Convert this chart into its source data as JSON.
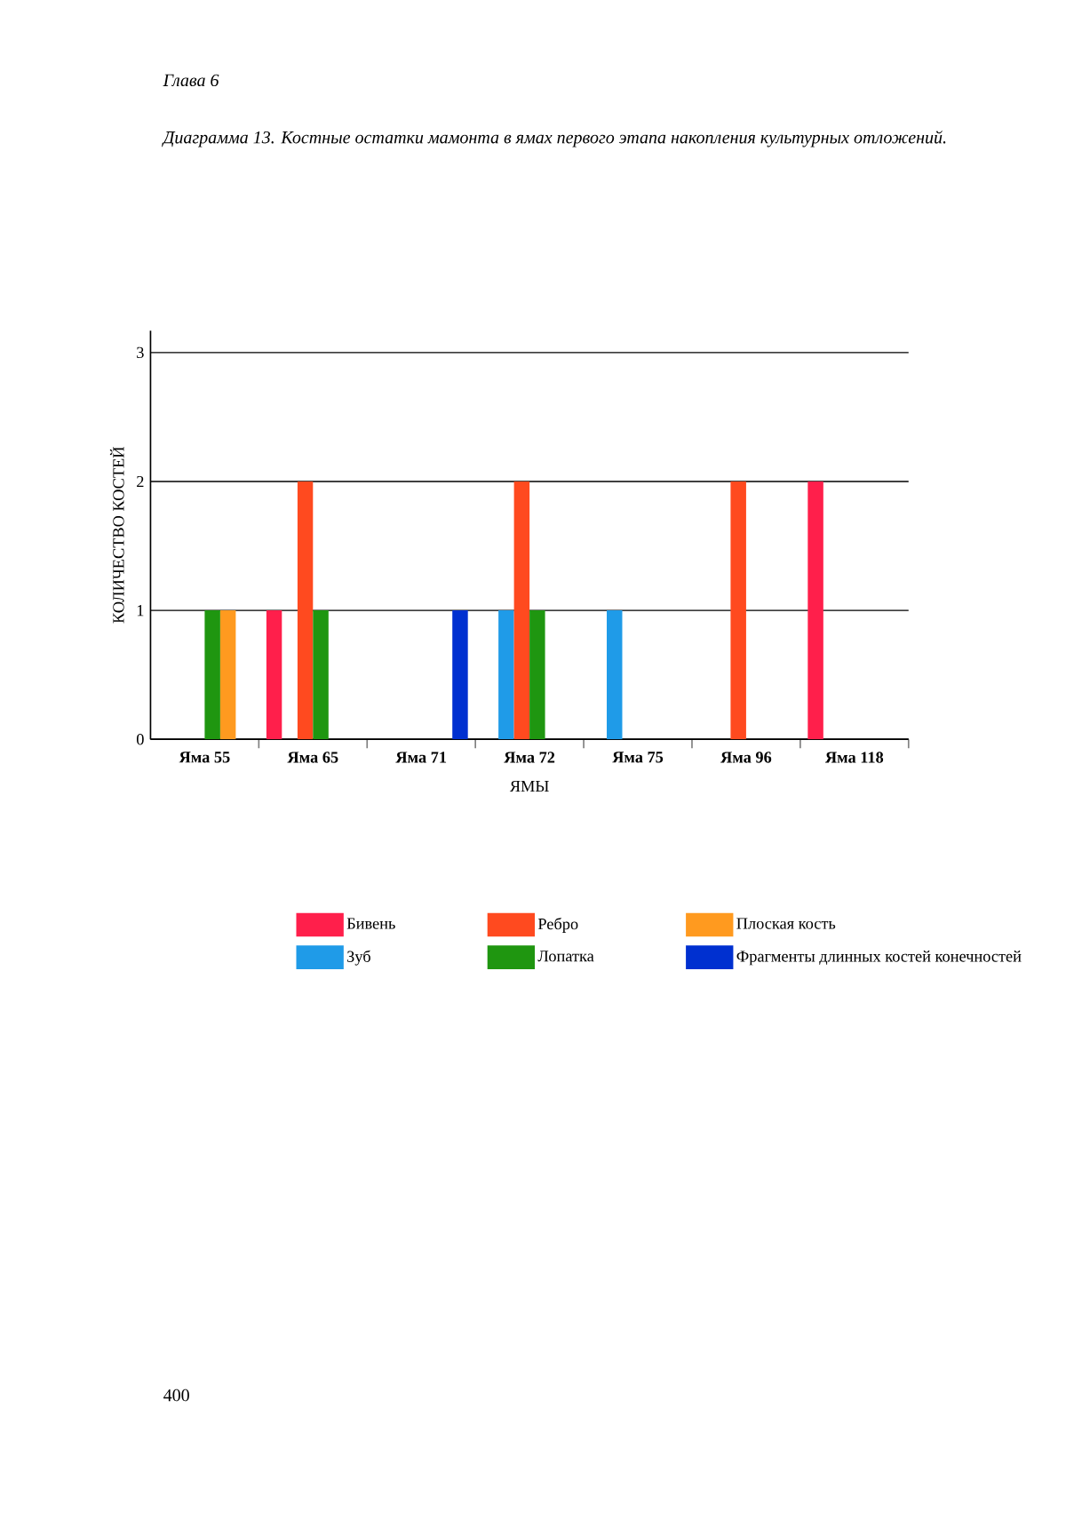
{
  "chart_data": {
    "type": "bar",
    "title": "*Диаграмма 13.  Костные остатки мамонта в ямах первого этапа накопления культурных отложений.*",
    "xlabel": "ЯМЫ",
    "ylabel": "КОЛИЧЕСТВО КОСТЕЙ",
    "annotations": [
      "*Глава 6*",
      "400"
    ],
    "categories": [
      "Яма 55",
      "Яма 65",
      "Яма 71",
      "Яма 72",
      "Яма 75",
      "Яма 96",
      "Яма 118"
    ],
    "series": [
      {
        "name": "Бивень",
        "color": "#ff1f4b",
        "values": [
          null,
          1,
          null,
          null,
          null,
          null,
          2
        ]
      },
      {
        "name": "Зуб",
        "color": "#1f9be8",
        "values": [
          null,
          null,
          null,
          1,
          1,
          null,
          null
        ]
      },
      {
        "name": "Ребро",
        "color": "#ff4a1f",
        "values": [
          null,
          2,
          null,
          2,
          null,
          2,
          null
        ]
      },
      {
        "name": "Лопатка",
        "color": "#1f9610",
        "values": [
          1,
          1,
          null,
          1,
          null,
          null,
          null
        ]
      },
      {
        "name": "Плоская кость",
        "color": "#ff9a1f",
        "values": [
          1,
          null,
          null,
          null,
          null,
          null,
          null
        ]
      },
      {
        "name": "Фрагменты длинных костей конечностей",
        "color": "#0030d0",
        "values": [
          null,
          null,
          1,
          null,
          null,
          null,
          null
        ]
      }
    ],
    "ylim": [
      0,
      3.17
    ],
    "yticks": [
      0,
      1,
      2,
      3
    ],
    "grid": "y",
    "legend": "bottom"
  }
}
